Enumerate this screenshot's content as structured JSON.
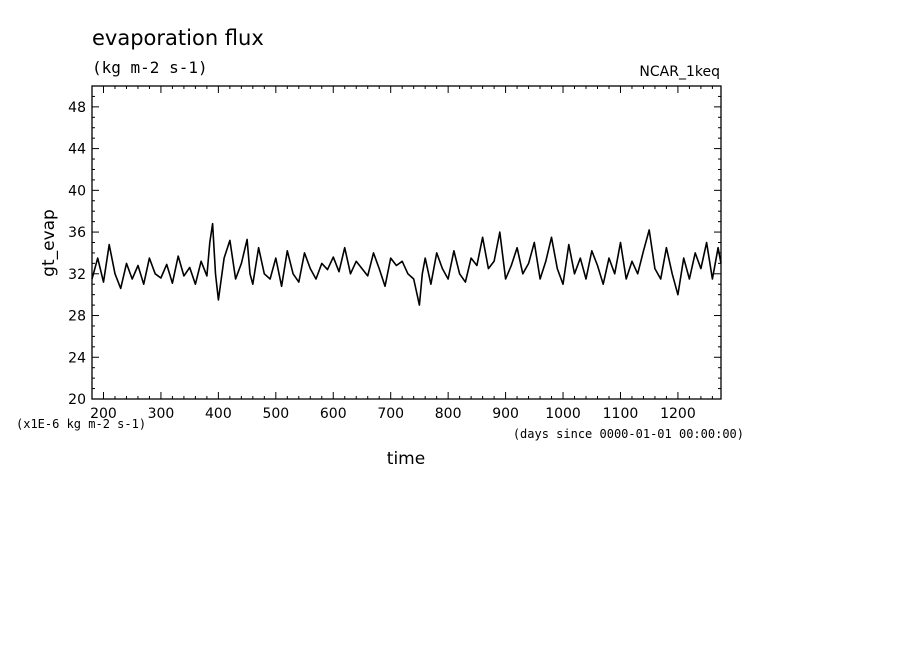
{
  "chart_data": {
    "type": "line",
    "title": "evaporation flux",
    "subtitle": "(kg m-2 s-1)",
    "label_right": "NCAR_1keq",
    "xlabel": "time",
    "x_units": "(days since 0000-01-01 00:00:00)",
    "ylabel": "gt_evap",
    "y_units": "(x1E-6 kg m-2 s-1)",
    "xlim": [
      180,
      1275
    ],
    "ylim": [
      20,
      50
    ],
    "x_ticks": [
      200,
      300,
      400,
      500,
      600,
      700,
      800,
      900,
      1000,
      1100,
      1200
    ],
    "y_ticks": [
      20,
      24,
      28,
      32,
      36,
      40,
      44,
      48
    ],
    "grid": false,
    "line_color": "#000000",
    "series": [
      {
        "x": [
          180,
          190,
          200,
          210,
          220,
          230,
          240,
          250,
          260,
          270,
          280,
          290,
          300,
          310,
          320,
          330,
          340,
          350,
          360,
          370,
          380,
          385,
          390,
          395,
          400,
          410,
          420,
          430,
          440,
          450,
          455,
          460,
          470,
          480,
          490,
          500,
          510,
          520,
          530,
          540,
          550,
          560,
          570,
          580,
          590,
          600,
          610,
          620,
          630,
          640,
          650,
          660,
          670,
          680,
          690,
          700,
          710,
          720,
          730,
          740,
          750,
          755,
          760,
          770,
          780,
          790,
          800,
          810,
          820,
          830,
          840,
          850,
          860,
          870,
          880,
          890,
          900,
          910,
          920,
          930,
          940,
          950,
          960,
          970,
          980,
          990,
          1000,
          1010,
          1020,
          1030,
          1040,
          1050,
          1060,
          1070,
          1080,
          1090,
          1100,
          1110,
          1120,
          1130,
          1140,
          1150,
          1160,
          1170,
          1180,
          1190,
          1200,
          1210,
          1220,
          1230,
          1240,
          1250,
          1260,
          1270,
          1275
        ],
        "values": [
          31.5,
          33.5,
          31.2,
          34.8,
          32.0,
          30.6,
          33.0,
          31.5,
          32.8,
          31.0,
          33.5,
          32.0,
          31.6,
          32.9,
          31.1,
          33.7,
          31.8,
          32.6,
          31.0,
          33.2,
          31.8,
          35.0,
          36.8,
          32.0,
          29.5,
          33.5,
          35.2,
          31.5,
          33.0,
          35.3,
          32.0,
          31.0,
          34.5,
          32.0,
          31.5,
          33.5,
          30.8,
          34.2,
          32.0,
          31.2,
          34.0,
          32.5,
          31.5,
          33.0,
          32.4,
          33.6,
          32.2,
          34.5,
          32.0,
          33.2,
          32.5,
          31.8,
          34.0,
          32.5,
          30.8,
          33.5,
          32.8,
          33.2,
          32.0,
          31.5,
          29.0,
          32.0,
          33.5,
          31.0,
          34.0,
          32.5,
          31.5,
          34.2,
          32.0,
          31.2,
          33.5,
          32.8,
          35.5,
          32.5,
          33.2,
          36.0,
          31.5,
          32.8,
          34.5,
          32.0,
          33.0,
          35.0,
          31.5,
          33.2,
          35.5,
          32.5,
          31.0,
          34.8,
          32.0,
          33.5,
          31.5,
          34.2,
          32.8,
          31.0,
          33.5,
          32.0,
          35.0,
          31.5,
          33.2,
          32.0,
          34.2,
          36.2,
          32.5,
          31.5,
          34.5,
          32.0,
          30.0,
          33.5,
          31.5,
          34.0,
          32.5,
          35.0,
          31.5,
          34.5,
          33.0
        ]
      }
    ]
  }
}
